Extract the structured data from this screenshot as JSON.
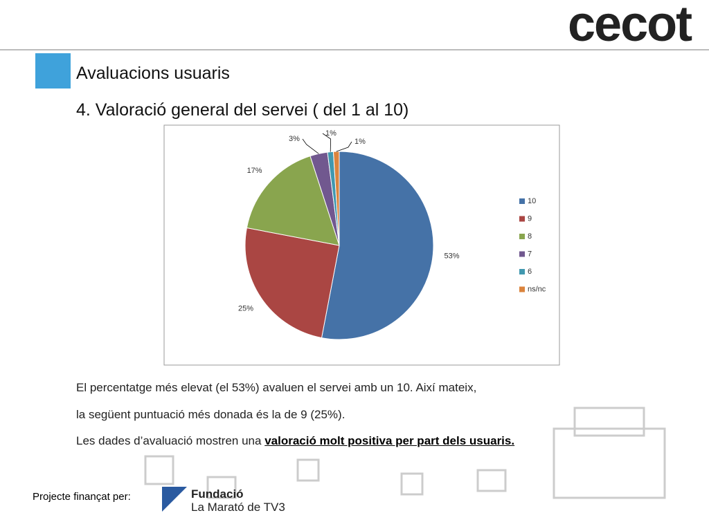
{
  "slide": {
    "logo": "cecot",
    "title": "Avaluacions usuaris",
    "subtitle": "4. Valoració general del servei ( del 1 al 10)",
    "paragraph": [
      "El percentatge més elevat (el 53%) avaluen el servei amb un 10. Així mateix,",
      "la següent puntuació més donada és la de 9 (25%)."
    ],
    "conclusion": {
      "text": "Les dades d’avaluació mostren una",
      "emphasis": "valoració molt positiva per part dels usuaris."
    },
    "footer": {
      "label": "Projecte finançat per:",
      "funder_line1": "Fundació",
      "funder_line2": "La Marató de TV3"
    }
  },
  "chart_data": {
    "type": "pie",
    "categories": [
      "10",
      "9",
      "8",
      "7",
      "6",
      "ns/nc"
    ],
    "values": [
      53,
      25,
      17,
      3,
      1,
      1
    ],
    "value_labels": [
      "53%",
      "25%",
      "17%",
      "3%",
      "1%",
      "1%"
    ],
    "colors": [
      "#4572a7",
      "#aa4643",
      "#89a54e",
      "#71588f",
      "#4198af",
      "#db843d"
    ],
    "legend": "right"
  }
}
